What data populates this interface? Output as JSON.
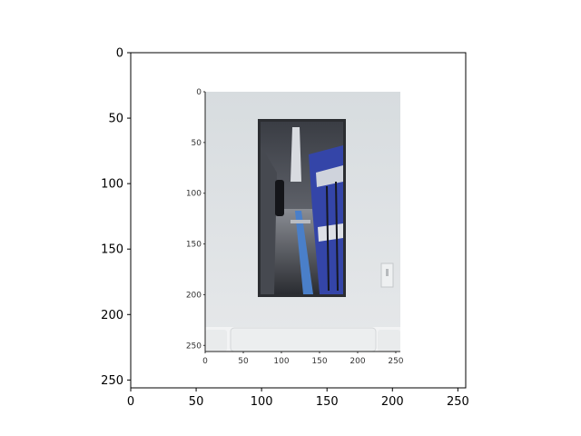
{
  "chart_data": {
    "type": "image",
    "title": "",
    "xlabel": "",
    "ylabel": "",
    "xlim": [
      0,
      256
    ],
    "ylim": [
      256,
      0
    ],
    "x_ticks": [
      "0",
      "50",
      "100",
      "150",
      "200",
      "250"
    ],
    "y_ticks": [
      "0",
      "50",
      "100",
      "150",
      "200",
      "250"
    ],
    "x_tick_values": [
      0,
      50,
      100,
      150,
      200,
      250
    ],
    "y_tick_values": [
      0,
      50,
      100,
      150,
      200,
      250
    ],
    "grid": false,
    "inner_image": {
      "x_ticks": [
        "0",
        "50",
        "100",
        "150",
        "200",
        "250"
      ],
      "y_ticks": [
        "0",
        "50",
        "100",
        "150",
        "200",
        "250"
      ],
      "x_tick_values": [
        0,
        50,
        100,
        150,
        200,
        250
      ],
      "y_tick_values": [
        0,
        50,
        100,
        150,
        200,
        250
      ],
      "content": "poster of an underground subway platform with a blue-striped train, hanging on a pale wall above a white sofa"
    }
  },
  "colors": {
    "wall": "#dfe2e4",
    "frame": "#2b2d31",
    "train_blue": "#3445a8",
    "sofa": "#f2f3f4",
    "axis": "#000000"
  }
}
